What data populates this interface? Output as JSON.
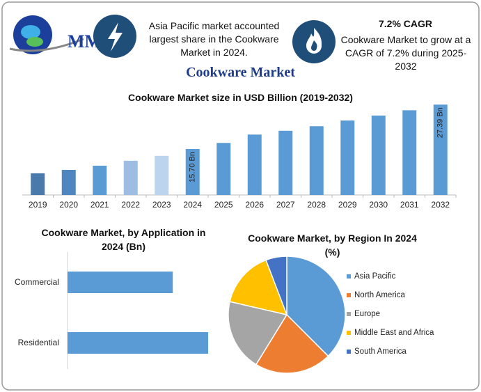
{
  "header": {
    "logo": "MMR",
    "highlight_1": "Asia Pacific market accounted largest share in the Cookware Market in 2024.",
    "highlight_2_title": "7.2% CAGR",
    "highlight_2": "Cookware Market to grow at a CAGR of 7.2% during 2025-2032"
  },
  "title": "Cookware Market",
  "chart_data": [
    {
      "type": "bar",
      "title": "Cookware Market size in USD Billion (2019-2032)",
      "categories": [
        "2019",
        "2020",
        "2021",
        "2022",
        "2023",
        "2024",
        "2025",
        "2026",
        "2027",
        "2028",
        "2029",
        "2030",
        "2031",
        "2032"
      ],
      "values": [
        9.3,
        10.2,
        11.3,
        12.6,
        13.9,
        15.7,
        17.3,
        19.5,
        20.5,
        21.7,
        23.2,
        24.5,
        25.9,
        27.39
      ],
      "value_labels": [
        null,
        null,
        null,
        null,
        null,
        "15.70 Bn",
        null,
        null,
        null,
        null,
        null,
        null,
        null,
        "27.39 Bn"
      ],
      "colors": [
        "#4a7aab",
        "#4f86bf",
        "#5b9bd5",
        "#9dbde3",
        "#bcd4ee",
        "#5b9bd5",
        "#5b9bd5",
        "#5b9bd5",
        "#5b9bd5",
        "#5b9bd5",
        "#5b9bd5",
        "#5b9bd5",
        "#5b9bd5",
        "#5b9bd5"
      ],
      "ylim": [
        3.6,
        30
      ]
    },
    {
      "type": "hbar",
      "title": "Cookware Market, by Application in 2024 (Bn)",
      "categories": [
        "Commercial",
        "Residential"
      ],
      "values": [
        6.72,
        8.98
      ],
      "color": "#5b9bd5",
      "xlim": [
        0,
        10
      ]
    },
    {
      "type": "pie",
      "title": "Cookware Market, by Region In 2024 (%)",
      "categories": [
        "Asia Pacific",
        "North America",
        "Europe",
        "Middle East and Africa",
        "South America"
      ],
      "values": [
        37.5,
        21.3,
        19.8,
        15.6,
        5.8
      ],
      "colors": [
        "#5b9bd5",
        "#ed7d31",
        "#a5a5a5",
        "#ffc000",
        "#4472c4"
      ],
      "legend": "right"
    }
  ]
}
